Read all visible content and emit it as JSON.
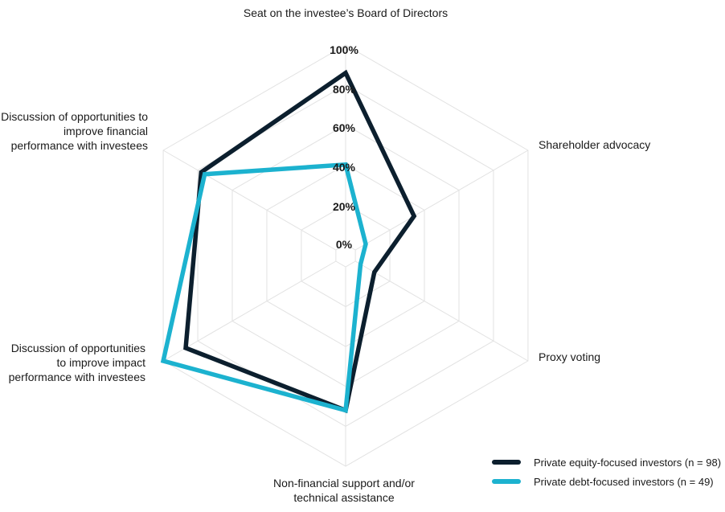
{
  "chart_data": {
    "type": "radar",
    "axes": [
      [
        "Seat on the investee’s Board of Directors"
      ],
      [
        "Shareholder advocacy"
      ],
      [
        "Proxy voting"
      ],
      [
        "Non-financial support and/or",
        "technical assistance"
      ],
      [
        "Discussion of opportunities",
        "to improve impact",
        "performance with investees"
      ],
      [
        "Discussion of opportunities to",
        "improve financial",
        "performance with investees"
      ]
    ],
    "ticks": [
      "0%",
      "20%",
      "40%",
      "60%",
      "80%",
      "100%"
    ],
    "range": [
      0,
      100
    ],
    "grid": true,
    "legend_position": "bottom-right",
    "series": [
      {
        "name": "Private equity-focused investors (n = 98)",
        "color": "#0c1f2e",
        "values": [
          86,
          34,
          11,
          72,
          87,
          78
        ]
      },
      {
        "name": "Private debt-focused investors (n = 49)",
        "color": "#1cb2cf",
        "values": [
          40,
          6,
          3,
          72,
          100,
          76
        ]
      }
    ]
  }
}
